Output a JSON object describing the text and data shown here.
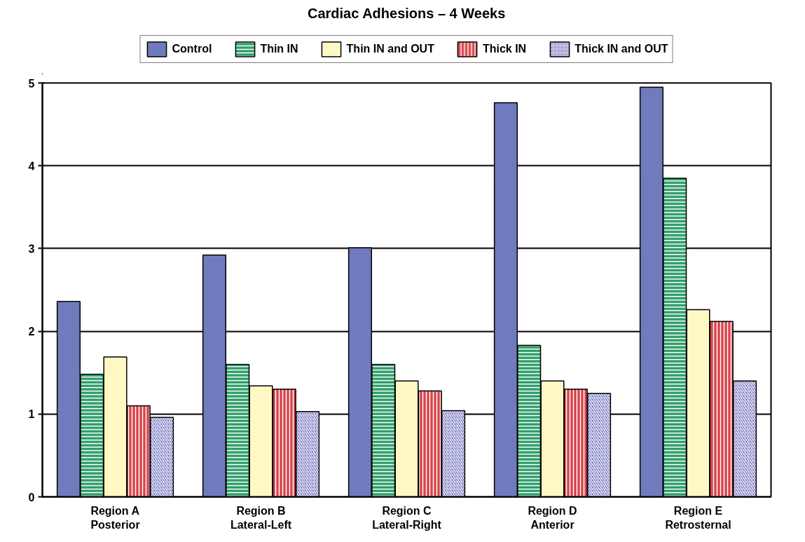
{
  "chart_data": {
    "type": "bar",
    "title": "Cardiac Adhesions – 4 Weeks",
    "categories": [
      "Region A\nPosterior",
      "Region B\nLateral-Left",
      "Region C\nLateral-Right",
      "Region D\nAnterior",
      "Region E\nRetrosternal"
    ],
    "series": [
      {
        "name": "Control",
        "color": "#6f7bbd",
        "values": [
          2.36,
          2.92,
          3.01,
          4.76,
          4.95
        ]
      },
      {
        "name": "Thin IN",
        "color": "#2e9e6a",
        "values": [
          1.48,
          1.6,
          1.6,
          1.83,
          3.85
        ]
      },
      {
        "name": "Thin IN and OUT",
        "color": "#fff8c4",
        "values": [
          1.69,
          1.34,
          1.4,
          1.4,
          2.26
        ]
      },
      {
        "name": "Thick IN",
        "color": "#d9444a",
        "values": [
          1.1,
          1.3,
          1.28,
          1.3,
          2.12
        ]
      },
      {
        "name": "Thick IN and OUT",
        "color": "#3a3aa8",
        "values": [
          0.96,
          1.03,
          1.04,
          1.25,
          1.4
        ]
      }
    ],
    "ylim": [
      0,
      5
    ],
    "yticks": [
      0,
      1,
      2,
      3,
      4,
      5
    ],
    "grid": "y",
    "legend": "top"
  }
}
